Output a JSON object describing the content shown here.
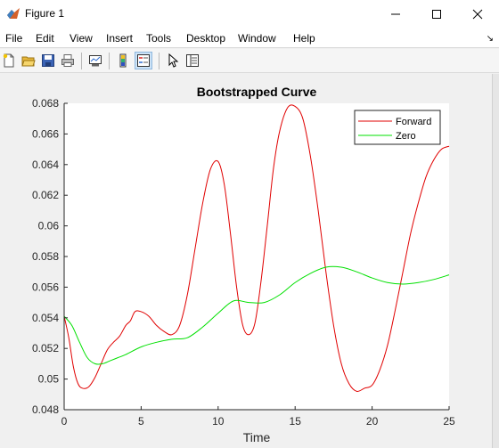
{
  "window": {
    "title": "Figure 1",
    "icon": "matlab-icon",
    "controls": [
      "minimize-icon",
      "maximize-icon",
      "close-icon"
    ]
  },
  "menu": {
    "items": [
      "File",
      "Edit",
      "View",
      "Insert",
      "Tools",
      "Desktop",
      "Window",
      "Help"
    ],
    "dock_icon": "dock-arrow-icon",
    "dock_glyph": "↘"
  },
  "toolbar": {
    "buttons": [
      {
        "icon": "new-figure-icon"
      },
      {
        "icon": "open-file-icon"
      },
      {
        "icon": "save-icon"
      },
      {
        "icon": "print-icon"
      },
      {
        "icon": "link-plot-icon"
      },
      {
        "icon": "insert-colorbar-icon"
      },
      {
        "icon": "insert-legend-icon",
        "active": true
      },
      {
        "icon": "edit-plot-pointer-icon"
      },
      {
        "icon": "property-inspector-icon"
      }
    ]
  },
  "chart_data": {
    "type": "line",
    "title": "Bootstrapped Curve",
    "xlabel": "Time",
    "ylabel": "",
    "xlim": [
      0,
      25
    ],
    "ylim": [
      0.048,
      0.068
    ],
    "xticks": [
      0,
      5,
      10,
      15,
      20,
      25
    ],
    "xtick_labels": [
      "0",
      "5",
      "10",
      "15",
      "20",
      "25"
    ],
    "yticks": [
      0.048,
      0.05,
      0.052,
      0.054,
      0.056,
      0.058,
      0.06,
      0.062,
      0.064,
      0.066,
      0.068
    ],
    "ytick_labels": [
      "0.048",
      "0.05",
      "0.052",
      "0.054",
      "0.056",
      "0.058",
      "0.06",
      "0.062",
      "0.064",
      "0.066",
      "0.068"
    ],
    "grid": false,
    "legend_position": "top-right",
    "series": [
      {
        "name": "Forward",
        "color": "#e00000",
        "x": [
          0,
          0.3,
          0.6,
          0.9,
          1.2,
          1.6,
          2.0,
          2.4,
          2.8,
          3.2,
          3.6,
          4.0,
          4.3,
          4.6,
          5.0,
          5.5,
          6.0,
          6.5,
          7.0,
          7.5,
          8.0,
          8.5,
          9.0,
          9.5,
          10.0,
          10.4,
          10.8,
          11.2,
          11.6,
          12.0,
          12.4,
          12.8,
          13.2,
          13.6,
          14.0,
          14.5,
          15.0,
          15.5,
          16.0,
          16.5,
          17.0,
          17.5,
          18.0,
          18.5,
          19.0,
          19.5,
          20.0,
          20.5,
          21.0,
          21.5,
          22.0,
          22.5,
          23.0,
          23.5,
          24.0,
          24.5,
          25.0
        ],
        "y": [
          0.0541,
          0.0527,
          0.0508,
          0.0497,
          0.0494,
          0.0495,
          0.0501,
          0.051,
          0.0519,
          0.0524,
          0.0528,
          0.0535,
          0.0538,
          0.0544,
          0.0544,
          0.0541,
          0.0535,
          0.0531,
          0.0529,
          0.0535,
          0.0555,
          0.0585,
          0.0615,
          0.0637,
          0.0642,
          0.0627,
          0.0595,
          0.056,
          0.0535,
          0.0529,
          0.0537,
          0.0565,
          0.0601,
          0.0638,
          0.0662,
          0.0677,
          0.0678,
          0.067,
          0.0645,
          0.061,
          0.057,
          0.0535,
          0.051,
          0.0497,
          0.0492,
          0.0494,
          0.0496,
          0.0506,
          0.0522,
          0.0545,
          0.057,
          0.0595,
          0.0615,
          0.0632,
          0.0643,
          0.065,
          0.0652
        ]
      },
      {
        "name": "Zero",
        "color": "#00e000",
        "x": [
          0,
          0.5,
          1.0,
          1.5,
          2.0,
          2.5,
          3.0,
          3.5,
          4.0,
          5.0,
          6.0,
          7.0,
          8.0,
          9.0,
          10.0,
          11.0,
          12.0,
          13.0,
          14.0,
          15.0,
          16.0,
          17.0,
          18.0,
          19.0,
          20.0,
          21.0,
          22.0,
          23.0,
          24.0,
          25.0
        ],
        "y": [
          0.0541,
          0.0535,
          0.0524,
          0.0514,
          0.051,
          0.051,
          0.0512,
          0.0514,
          0.0516,
          0.0521,
          0.0524,
          0.0526,
          0.0527,
          0.0534,
          0.0543,
          0.0551,
          0.055,
          0.055,
          0.0555,
          0.0563,
          0.0569,
          0.0573,
          0.0573,
          0.057,
          0.0566,
          0.0563,
          0.0562,
          0.0563,
          0.0565,
          0.0568
        ]
      }
    ]
  }
}
